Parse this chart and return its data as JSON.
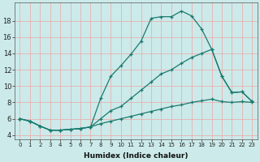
{
  "xlabel": "Humidex (Indice chaleur)",
  "ylabel": "",
  "bg_color": "#cceaea",
  "grid_color": "#e8b0b0",
  "line_color": "#1a7a6e",
  "xlim": [
    -0.5,
    23.5
  ],
  "ylim": [
    3.5,
    20.2
  ],
  "xticks": [
    0,
    1,
    2,
    3,
    4,
    5,
    6,
    7,
    8,
    9,
    10,
    11,
    12,
    13,
    14,
    15,
    16,
    17,
    18,
    19,
    20,
    21,
    22,
    23
  ],
  "yticks": [
    4,
    6,
    8,
    10,
    12,
    14,
    16,
    18
  ],
  "line1_x": [
    0,
    1,
    2,
    3,
    4,
    5,
    6,
    7,
    8,
    9,
    10,
    11,
    12,
    13,
    14,
    15,
    16,
    17,
    18,
    19,
    20,
    21,
    22,
    23
  ],
  "line1_y": [
    6.0,
    5.7,
    5.1,
    4.6,
    4.6,
    4.7,
    4.8,
    5.0,
    8.5,
    11.2,
    12.5,
    13.9,
    15.5,
    18.3,
    18.5,
    18.5,
    19.2,
    18.6,
    17.0,
    14.5,
    11.2,
    9.2,
    9.3,
    8.1
  ],
  "line2_x": [
    0,
    1,
    2,
    3,
    4,
    5,
    6,
    7,
    8,
    9,
    10,
    11,
    12,
    13,
    14,
    15,
    16,
    17,
    18,
    19,
    20,
    21,
    22,
    23
  ],
  "line2_y": [
    6.0,
    5.7,
    5.1,
    4.6,
    4.6,
    4.7,
    4.8,
    5.0,
    6.0,
    7.0,
    7.5,
    8.5,
    9.5,
    10.5,
    11.5,
    12.0,
    12.8,
    13.5,
    14.0,
    14.5,
    11.2,
    9.2,
    9.3,
    8.1
  ],
  "line3_x": [
    0,
    1,
    2,
    3,
    4,
    5,
    6,
    7,
    8,
    9,
    10,
    11,
    12,
    13,
    14,
    15,
    16,
    17,
    18,
    19,
    20,
    21,
    22,
    23
  ],
  "line3_y": [
    6.0,
    5.7,
    5.1,
    4.6,
    4.6,
    4.7,
    4.8,
    5.0,
    5.4,
    5.7,
    6.0,
    6.3,
    6.6,
    6.9,
    7.2,
    7.5,
    7.7,
    8.0,
    8.2,
    8.4,
    8.1,
    8.0,
    8.1,
    8.0
  ],
  "xlabel_fontsize": 6.5,
  "tick_fontsize_x": 5.0,
  "tick_fontsize_y": 6.0,
  "linewidth": 0.9,
  "markersize": 3.5,
  "markeredgewidth": 0.9
}
